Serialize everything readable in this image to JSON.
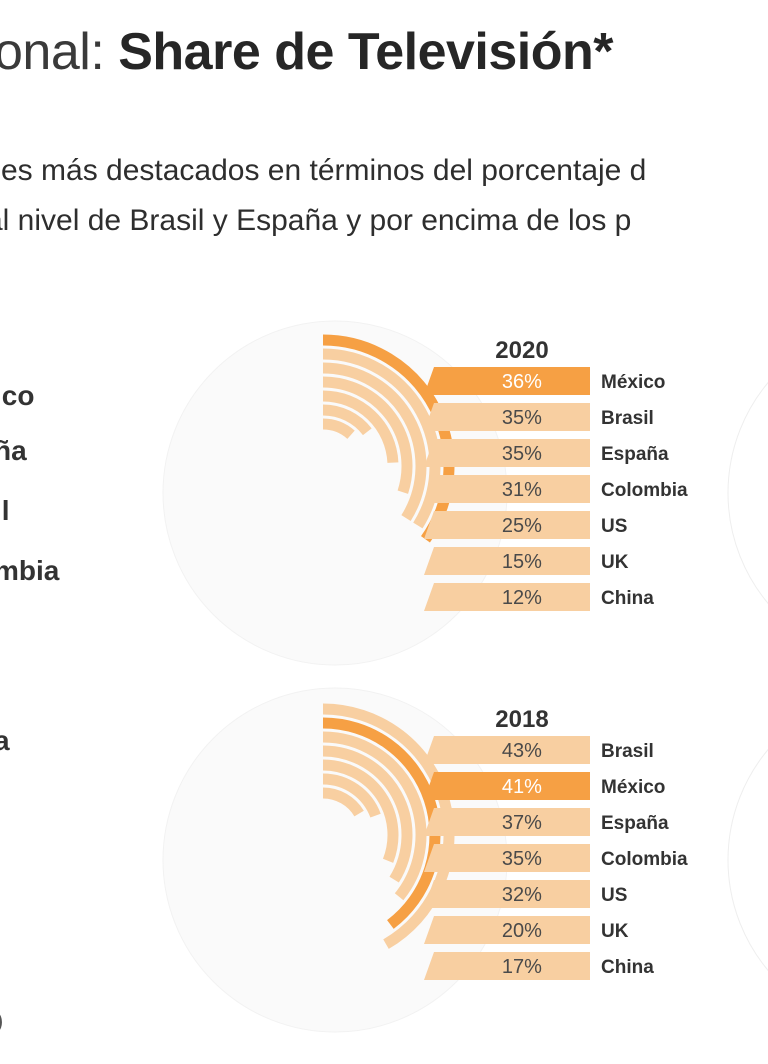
{
  "header": {
    "title_light": "onal: ",
    "title_bold": "Share de Televisión*",
    "subtitle_line1": "ses más destacados en términos del porcentaje d",
    "subtitle_line2": "al nivel de Brasil y España y por encima de los p"
  },
  "left_labels": [
    "ico",
    "ña",
    "il",
    "mbia",
    "a"
  ],
  "footnote": ")",
  "colors": {
    "highlight": "#f6a044",
    "normal": "#f8cfa1",
    "text_dark": "#333333",
    "text_light": "#ffffff"
  },
  "chart_data": [
    {
      "type": "bar",
      "title": "2020",
      "categories": [
        "México",
        "Brasil",
        "España",
        "Colombia",
        "US",
        "UK",
        "China"
      ],
      "values": [
        36,
        35,
        35,
        31,
        25,
        15,
        12
      ],
      "value_labels": [
        "36%",
        "35%",
        "35%",
        "31%",
        "25%",
        "15%",
        "12%"
      ],
      "highlight": "México",
      "ylim": [
        0,
        100
      ]
    },
    {
      "type": "bar",
      "title": "2018",
      "categories": [
        "Brasil",
        "México",
        "España",
        "Colombia",
        "US",
        "UK",
        "China"
      ],
      "values": [
        43,
        41,
        37,
        35,
        32,
        20,
        17
      ],
      "value_labels": [
        "43%",
        "41%",
        "37%",
        "35%",
        "32%",
        "20%",
        "17%"
      ],
      "highlight": "México",
      "ylim": [
        0,
        100
      ]
    }
  ]
}
